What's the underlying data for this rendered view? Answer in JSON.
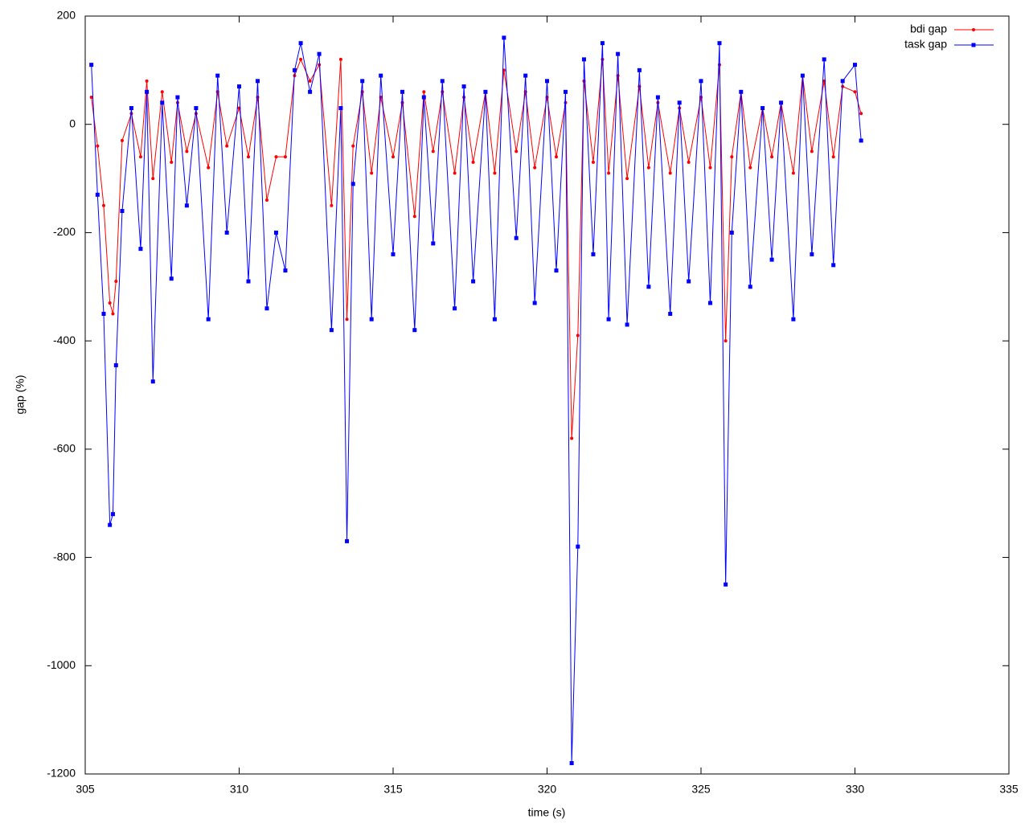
{
  "chart_data": {
    "type": "line",
    "x_label": "time (s)",
    "y_label": "gap (%)",
    "x": [
      305.2,
      305.4,
      305.6,
      305.8,
      305.9,
      306.0,
      306.2,
      306.5,
      306.8,
      307.0,
      307.2,
      307.5,
      307.8,
      308.0,
      308.3,
      308.6,
      309.0,
      309.3,
      309.6,
      310.0,
      310.3,
      310.6,
      310.9,
      311.2,
      311.5,
      311.8,
      312.0,
      312.3,
      312.6,
      313.0,
      313.3,
      313.5,
      313.7,
      314.0,
      314.3,
      314.6,
      315.0,
      315.3,
      315.7,
      316.0,
      316.3,
      316.6,
      317.0,
      317.3,
      317.6,
      318.0,
      318.3,
      318.6,
      319.0,
      319.3,
      319.6,
      320.0,
      320.3,
      320.6,
      320.8,
      321.0,
      321.2,
      321.5,
      321.8,
      322.0,
      322.3,
      322.6,
      323.0,
      323.3,
      323.6,
      324.0,
      324.3,
      324.6,
      325.0,
      325.3,
      325.6,
      325.8,
      326.0,
      326.3,
      326.6,
      327.0,
      327.3,
      327.6,
      328.0,
      328.3,
      328.6,
      329.0,
      329.3,
      329.6,
      330.0,
      330.2
    ],
    "series": [
      {
        "name": "bdi gap",
        "color": "#ff0000",
        "values": [
          50,
          -40,
          -150,
          -330,
          -350,
          -290,
          -30,
          20,
          -60,
          80,
          -100,
          60,
          -70,
          40,
          -50,
          20,
          -80,
          60,
          -40,
          30,
          -60,
          50,
          -140,
          -60,
          -60,
          90,
          120,
          80,
          110,
          -150,
          120,
          -360,
          -40,
          60,
          -90,
          50,
          -60,
          40,
          -170,
          60,
          -50,
          60,
          -90,
          50,
          -70,
          60,
          -90,
          100,
          -50,
          60,
          -80,
          50,
          -60,
          40,
          -580,
          -390,
          80,
          -70,
          120,
          -90,
          90,
          -100,
          70,
          -80,
          40,
          -90,
          30,
          -70,
          50,
          -80,
          110,
          -400,
          -60,
          60,
          -80,
          30,
          -60,
          40,
          -90,
          90,
          -50,
          80,
          -60,
          70,
          60,
          20
        ]
      },
      {
        "name": "task gap",
        "color": "#0000ff",
        "values": [
          110,
          -130,
          -350,
          -740,
          -720,
          -445,
          -160,
          30,
          -230,
          60,
          -475,
          40,
          -285,
          50,
          -150,
          30,
          -360,
          90,
          -200,
          70,
          -290,
          80,
          -340,
          -200,
          -270,
          100,
          150,
          60,
          130,
          -380,
          30,
          -770,
          -110,
          80,
          -360,
          90,
          -240,
          60,
          -380,
          50,
          -220,
          80,
          -340,
          70,
          -290,
          60,
          -360,
          160,
          -210,
          90,
          -330,
          80,
          -270,
          60,
          -1180,
          -780,
          120,
          -240,
          150,
          -360,
          130,
          -370,
          100,
          -300,
          50,
          -350,
          40,
          -290,
          80,
          -330,
          150,
          -850,
          -200,
          60,
          -300,
          30,
          -250,
          40,
          -360,
          90,
          -240,
          120,
          -260,
          80,
          110,
          -30
        ]
      }
    ],
    "xlim": [
      305,
      335
    ],
    "xticks": [
      305,
      310,
      315,
      320,
      325,
      330,
      335
    ],
    "ylim": [
      -1200,
      200
    ],
    "yticks": [
      -1200,
      -1000,
      -800,
      -600,
      -400,
      -200,
      0,
      200
    ],
    "legend": "top-right"
  }
}
